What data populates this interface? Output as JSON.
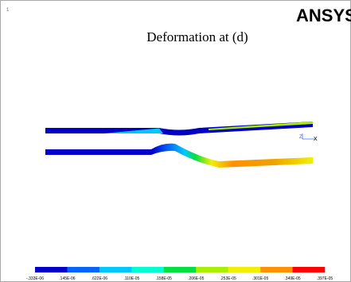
{
  "window_number": "1",
  "logo": "ANSYS",
  "title": "Deformation at (d)",
  "triad": [
    "Z",
    "X"
  ],
  "legend": {
    "colors": [
      "#0000c8",
      "#0064ff",
      "#00c8ff",
      "#00ffd0",
      "#00e040",
      "#a8f000",
      "#f0f000",
      "#ff9000",
      "#ff0000"
    ],
    "labels": [
      "-.333E-06",
      ".145E-06",
      ".622E-06",
      ".110E-05",
      ".158E-05",
      ".206E-05",
      ".253E-05",
      ".301E-05",
      ".349E-05",
      ".397E-05"
    ]
  }
}
